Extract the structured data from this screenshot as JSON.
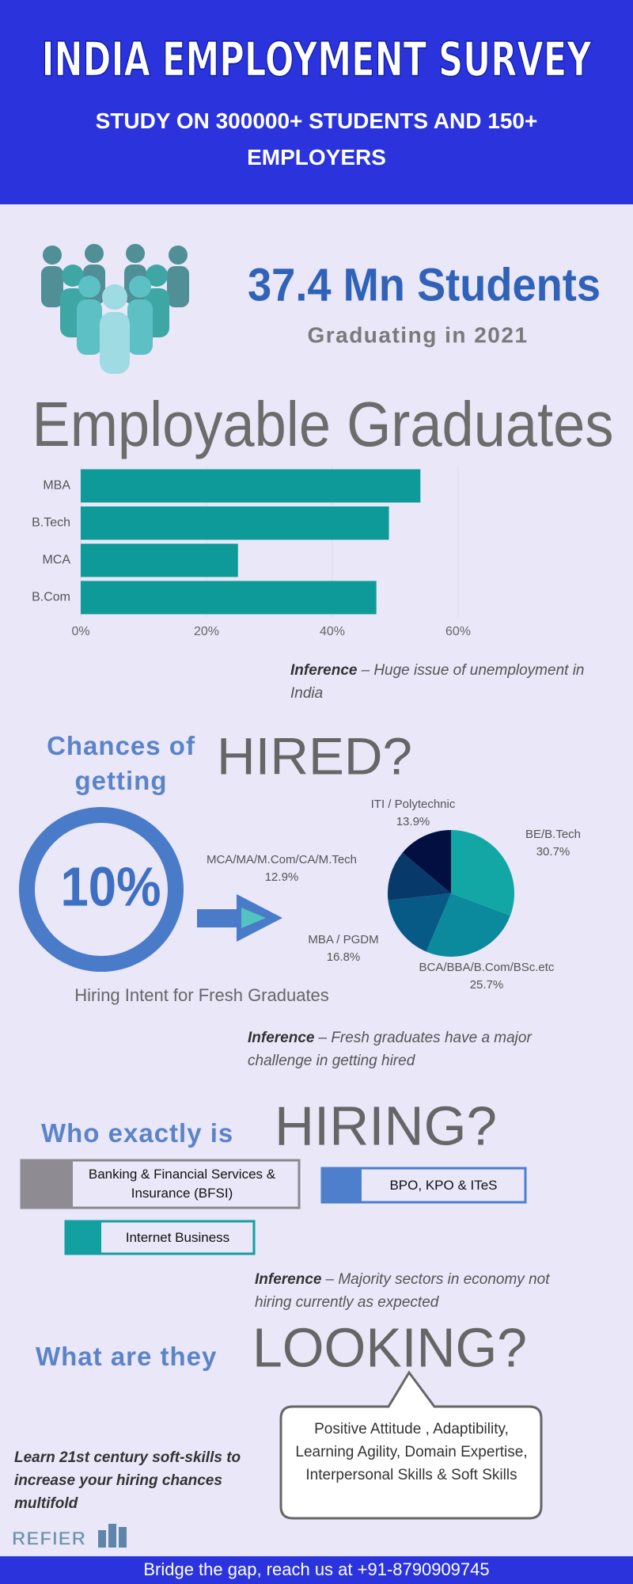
{
  "header": {
    "title": "INDIA EMPLOYMENT SURVEY",
    "subtitle": "STUDY ON 300000+ STUDENTS AND 150+ EMPLOYERS"
  },
  "graduates": {
    "headline": "37.4 Mn Students",
    "caption": "Graduating in 2021"
  },
  "chart_data": [
    {
      "type": "bar",
      "orientation": "horizontal",
      "title": "Employable Graduates",
      "categories": [
        "MBA",
        "B.Tech",
        "MCA",
        "B.Com"
      ],
      "values": [
        54,
        49,
        25,
        47
      ],
      "color": "#0e9a98",
      "xlim": [
        0,
        60
      ],
      "xticks": [
        {
          "value": 0,
          "label": "0%"
        },
        {
          "value": 20,
          "label": "20%"
        },
        {
          "value": 40,
          "label": "40%"
        },
        {
          "value": 60,
          "label": "60%"
        }
      ],
      "grid": true
    },
    {
      "type": "pie",
      "categories": [
        "BE/B.Tech",
        "BCA/BBA/B.Com/BSc.etc",
        "MBA / PGDM",
        "MCA/MA/M.Com/CA/M.Tech",
        "ITI / Polytechnic"
      ],
      "values": [
        30.7,
        25.7,
        16.8,
        12.9,
        13.9
      ],
      "value_labels": [
        "30.7%",
        "25.7%",
        "16.8%",
        "12.9%",
        "13.9%"
      ],
      "colors": [
        "#12a7a4",
        "#0b8a9d",
        "#075a86",
        "#073a6b",
        "#020f40"
      ]
    }
  ],
  "inferences": [
    {
      "label": "Inference",
      "text": "– Huge issue of unemployment in India"
    },
    {
      "label": "Inference",
      "text": "– Fresh graduates have a major challenge in getting hired"
    },
    {
      "label": "Inference",
      "text": "– Majority sectors in economy not hiring currently as expected"
    }
  ],
  "hiring_chances": {
    "heading": "Chances of getting",
    "emphasis": "HIRED?",
    "rate": "10%",
    "caption": "Hiring Intent for Fresh Graduates"
  },
  "who_is_hiring": {
    "heading": "Who exactly is",
    "emphasis": "HIRING?",
    "sectors": [
      "Banking & Financial Services & Insurance (BFSI)",
      "BPO, KPO & ITeS",
      "Internet Business"
    ]
  },
  "looking_for": {
    "heading": "What are they",
    "emphasis": "LOOKING?",
    "skills": "Positive Attitude , Adaptibility, Learning Agility, Domain Expertise, Interpersonal Skills & Soft Skills"
  },
  "call_to_action": "Learn 21st century soft-skills to increase your hiring chances multifold",
  "brand": "REFIER",
  "footer": "Bridge the gap, reach us at +91-8790909745"
}
